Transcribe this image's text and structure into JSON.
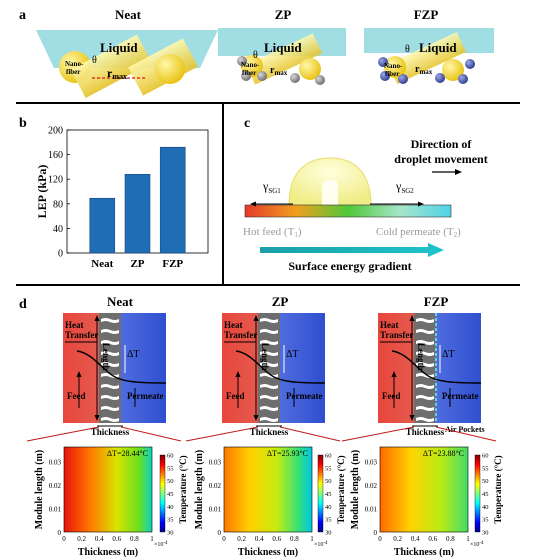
{
  "panel_a": {
    "label": "a",
    "items": [
      {
        "title": "Neat",
        "liquid": "Liquid",
        "theta": "θ",
        "nanofiber_line1": "Nano-",
        "nanofiber_line2": "fiber",
        "rmax": "r",
        "rmax_sub": "max"
      },
      {
        "title": "ZP",
        "liquid": "Liquid",
        "theta": "θ",
        "nanofiber_line1": "Nano-",
        "nanofiber_line2": "fiber",
        "rmax": "r",
        "rmax_sub": "max"
      },
      {
        "title": "FZP",
        "liquid": "Liquid",
        "theta": "θ",
        "nanofiber_line1": "Nano-",
        "nanofiber_line2": "fiber",
        "rmax": "r",
        "rmax_sub": "max"
      }
    ]
  },
  "panel_b": {
    "label": "b"
  },
  "chart_data": {
    "type": "bar",
    "categories": [
      "Neat",
      "ZP",
      "FZP"
    ],
    "values": [
      89,
      128,
      172
    ],
    "ylabel": "LEP (kPa)",
    "ylim": [
      0,
      200
    ],
    "yticks": [
      0,
      40,
      80,
      120,
      160,
      200
    ],
    "bar_color": "#1f6db5"
  },
  "panel_c": {
    "label": "c",
    "gamma1": "γ",
    "gamma1_sub": "SG1",
    "gamma2": "γ",
    "gamma2_sub": "SG2",
    "direction_line1": "Direction of",
    "direction_line2": "droplet movement",
    "hot_feed": "Hot feed (T",
    "hot_feed_sub": "1",
    "cold_permeate": "Cold permeate (T",
    "cold_permeate_sub": "2",
    "gradient_label": "Surface energy gradient"
  },
  "panel_d": {
    "label": "d",
    "membranes": [
      {
        "title": "Neat",
        "heat": "Heat",
        "transfer": "Transfer",
        "length": "Length",
        "delta": "ΔT",
        "feed": "Feed",
        "permeate": "Permeate",
        "thickness": "Thickness",
        "air_pockets": ""
      },
      {
        "title": "ZP",
        "heat": "Heat",
        "transfer": "Transfer",
        "length": "Length",
        "delta": "ΔT",
        "feed": "Feed",
        "permeate": "Permeate",
        "thickness": "Thickness",
        "air_pockets": ""
      },
      {
        "title": "FZP",
        "heat": "Heat",
        "transfer": "Transfer",
        "length": "Length",
        "delta": "ΔT",
        "feed": "Feed",
        "permeate": "Permeate",
        "thickness": "Thickness",
        "air_pockets": "Air Pockets"
      }
    ],
    "maps": [
      {
        "delta_t": "ΔT=28.44°C"
      },
      {
        "delta_t": "ΔT=25.93°C"
      },
      {
        "delta_t": "ΔT=23.88°C"
      }
    ],
    "xlabel": "Thickness (m)",
    "ylabel": "Module length (m)",
    "cbar_label": "Temperature (°C)",
    "xticks": [
      "0",
      "0.2",
      "0.4",
      "0.6",
      "0.8",
      "1"
    ],
    "xexp": "×10",
    "xexp_pow": "-4",
    "yticks": [
      "0",
      "0.01",
      "0.02",
      "0.03"
    ],
    "cticks": [
      "30",
      "35",
      "40",
      "45",
      "50",
      "55",
      "60"
    ]
  }
}
